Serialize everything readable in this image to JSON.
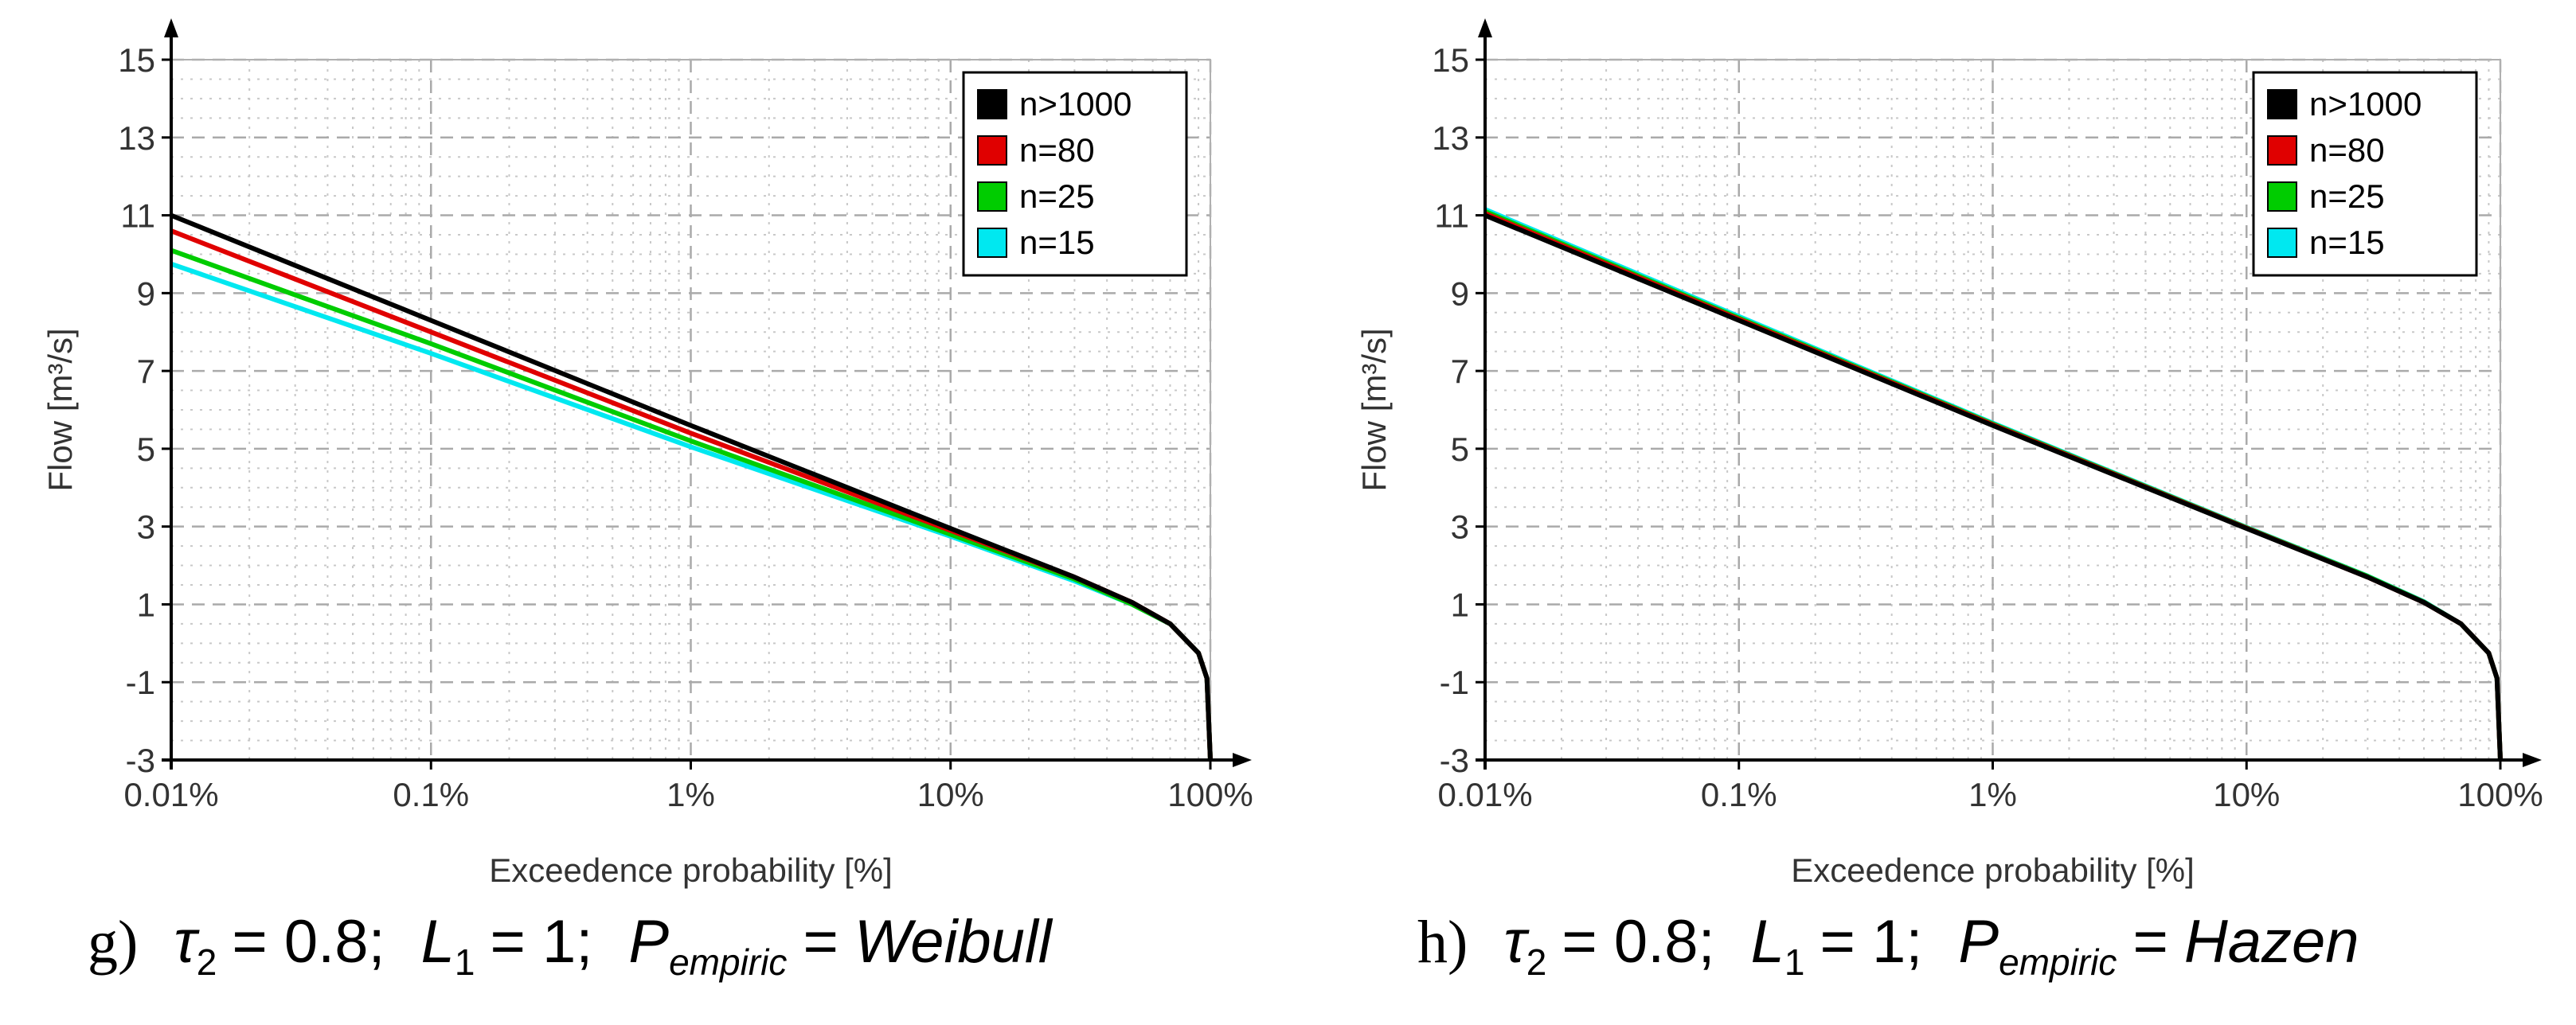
{
  "figure": {
    "palette": {
      "n>1000": "#000000",
      "n=80": "#e00000",
      "n=25": "#00cc00",
      "n=15": "#00e8f0",
      "grid": "#c8c8c8",
      "axis": "#000000"
    }
  },
  "chart_data": [
    {
      "type": "line",
      "panel": "g",
      "xlabel": "Exceedence probability [%]",
      "ylabel": "Flow [m³/s]",
      "x_scale": "log",
      "xlim": [
        0.01,
        100
      ],
      "ylim": [
        -3,
        15
      ],
      "xticks": [
        "0.01%",
        "0.1%",
        "1%",
        "10%",
        "100%"
      ],
      "yticks": [
        "-3",
        "-1",
        "1",
        "3",
        "5",
        "7",
        "9",
        "11",
        "13",
        "15"
      ],
      "grid": true,
      "legend_position": "top-right",
      "legend": [
        "n>1000",
        "n=80",
        "n=25",
        "n=15"
      ],
      "x": [
        0.01,
        0.1,
        1,
        10,
        30,
        50,
        70,
        90,
        97,
        100
      ],
      "series": [
        {
          "name": "n>1000",
          "values": [
            11.0,
            8.3,
            5.6,
            2.95,
            1.7,
            1.05,
            0.5,
            -0.25,
            -0.9,
            -3.0
          ]
        },
        {
          "name": "n=80",
          "values": [
            10.6,
            8.0,
            5.4,
            2.9,
            1.7,
            1.05,
            0.5,
            -0.25,
            -0.9,
            -3.0
          ]
        },
        {
          "name": "n=25",
          "values": [
            10.1,
            7.7,
            5.2,
            2.8,
            1.65,
            1.0,
            0.5,
            -0.25,
            -0.9,
            -3.0
          ]
        },
        {
          "name": "n=15",
          "values": [
            9.75,
            7.45,
            5.05,
            2.75,
            1.6,
            1.0,
            0.5,
            -0.25,
            -0.9,
            -3.0
          ]
        }
      ],
      "caption": {
        "label": "g)",
        "tau": "τ",
        "tau_sub": "2",
        "tau_value": "= 0.8",
        "l": "L",
        "l_sub": "1",
        "l_value": "= 1",
        "p": "P",
        "p_sub": "empiric",
        "p_value": "= Weibull"
      }
    },
    {
      "type": "line",
      "panel": "h",
      "xlabel": "Exceedence probability [%]",
      "ylabel": "Flow [m³/s]",
      "x_scale": "log",
      "xlim": [
        0.01,
        100
      ],
      "ylim": [
        -3,
        15
      ],
      "xticks": [
        "0.01%",
        "0.1%",
        "1%",
        "10%",
        "100%"
      ],
      "yticks": [
        "-3",
        "-1",
        "1",
        "3",
        "5",
        "7",
        "9",
        "11",
        "13",
        "15"
      ],
      "grid": true,
      "legend_position": "top-right",
      "legend": [
        "n>1000",
        "n=80",
        "n=25",
        "n=15"
      ],
      "x": [
        0.01,
        0.1,
        1,
        10,
        30,
        50,
        70,
        90,
        97,
        100
      ],
      "series": [
        {
          "name": "n>1000",
          "values": [
            11.0,
            8.3,
            5.6,
            2.95,
            1.7,
            1.05,
            0.5,
            -0.25,
            -0.9,
            -3.0
          ]
        },
        {
          "name": "n=80",
          "values": [
            11.05,
            8.33,
            5.62,
            2.96,
            1.7,
            1.05,
            0.5,
            -0.25,
            -0.9,
            -3.0
          ]
        },
        {
          "name": "n=25",
          "values": [
            11.1,
            8.36,
            5.64,
            2.97,
            1.72,
            1.06,
            0.5,
            -0.25,
            -0.9,
            -3.0
          ]
        },
        {
          "name": "n=15",
          "values": [
            11.15,
            8.4,
            5.66,
            2.98,
            1.73,
            1.07,
            0.5,
            -0.25,
            -0.9,
            -3.0
          ]
        }
      ],
      "caption": {
        "label": "h)",
        "tau": "τ",
        "tau_sub": "2",
        "tau_value": "= 0.8",
        "l": "L",
        "l_sub": "1",
        "l_value": "= 1",
        "p": "P",
        "p_sub": "empiric",
        "p_value": "= Hazen"
      }
    }
  ]
}
